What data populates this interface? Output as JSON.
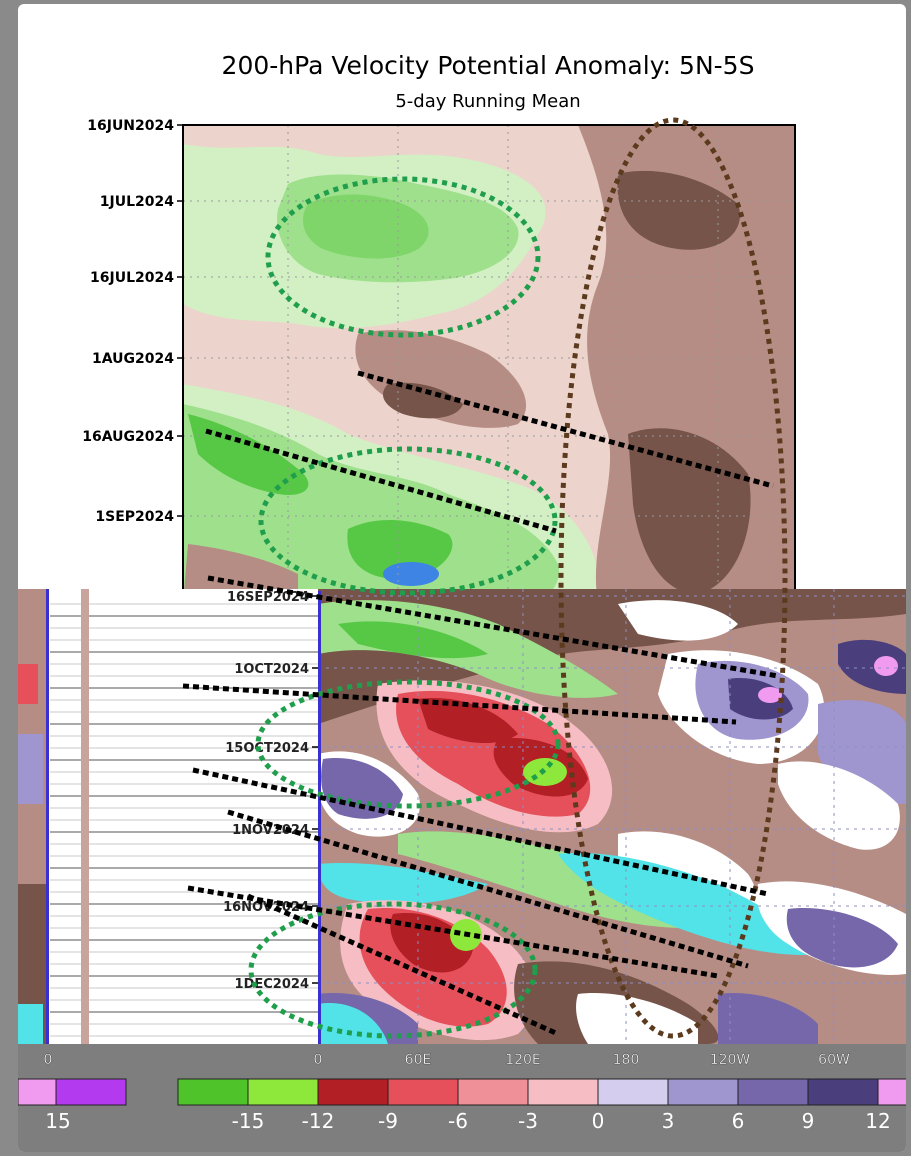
{
  "colors": {
    "background": "#8a8a8a",
    "bottom_panel": "#7e7e7e",
    "green_ellipse": "#1f9e4c",
    "brown_ellipse": "#5b3a1e",
    "dashed_line": "#000000",
    "palette_green_dark": "#4fc42a",
    "palette_green_light": "#8ee83b",
    "palette_red_dark": "#b21f24",
    "palette_red": "#e5505a",
    "palette_red_light": "#ef8f98",
    "palette_pink": "#f6bec4",
    "palette_lavender": "#d4cdee",
    "palette_purple_light": "#9f95cf",
    "palette_purple": "#7567aa",
    "palette_purple_dark": "#4a3f7c",
    "palette_magenta": "#f09bf0",
    "palette_violet": "#b33aee",
    "map_green_light": "#d3f0c4",
    "map_green": "#9ee08c",
    "map_tan": "#ecd3cb",
    "map_brown": "#b58d84",
    "map_brown_dark": "#765449",
    "map_cyan": "#52e3e8"
  },
  "chart_data": {
    "type": "heatmap",
    "title": "200-hPa Velocity Potential Anomaly: 5N-5S",
    "subtitle": "5-day Running Mean",
    "y_tick_labels": [
      "16JUN2024",
      "1JUL2024",
      "16JUL2024",
      "1AUG2024",
      "16AUG2024",
      "1SEP2024",
      "16SEP2024",
      "1OCT2024",
      "15OCT2024",
      "1NOV2024",
      "16NOV2024",
      "1DEC2024"
    ],
    "x_tick_labels": [
      "0",
      "60E",
      "120E",
      "180",
      "120W",
      "60W"
    ],
    "x_tick_labels_left_panel": [
      "0"
    ],
    "colorbar_left_labels": [
      "15"
    ],
    "colorbar_labels": [
      "-15",
      "-12",
      "-9",
      "-6",
      "-3",
      "0",
      "3",
      "6",
      "9",
      "12"
    ],
    "colorbar_keys": [
      "palette_magenta",
      "palette_violet",
      "",
      "palette_green_dark",
      "palette_green_light",
      "palette_red_dark",
      "palette_red",
      "palette_red_light",
      "palette_pink",
      "palette_lavender",
      "palette_purple_light",
      "palette_purple",
      "palette_purple_dark",
      "palette_magenta"
    ],
    "grid": true,
    "annotations": [
      {
        "type": "dotted-ellipse",
        "color": "green",
        "region": "July 2024, Indian Ocean"
      },
      {
        "type": "dotted-ellipse",
        "color": "green",
        "region": "September 2024, Indian Ocean"
      },
      {
        "type": "dotted-ellipse",
        "color": "green",
        "region": "October 2024, Indian Ocean"
      },
      {
        "type": "dotted-ellipse",
        "color": "green",
        "region": "late November 2024, Indian Ocean"
      },
      {
        "type": "dotted-ellipse",
        "color": "brown",
        "region": "June to December 2024, near date line"
      },
      {
        "type": "dashed-lines",
        "color": "black",
        "count": 8,
        "direction": "eastward propagation"
      }
    ]
  }
}
